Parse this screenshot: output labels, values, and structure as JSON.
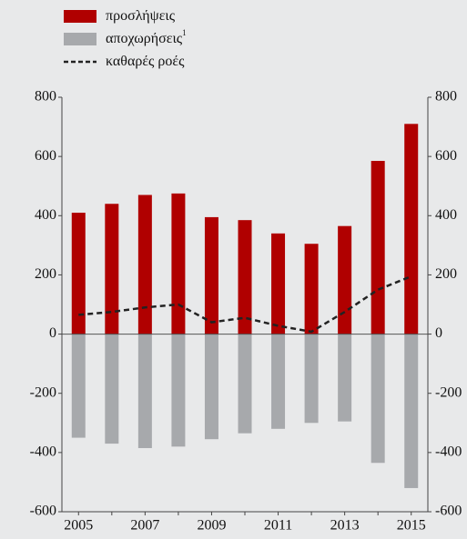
{
  "chart_data": {
    "type": "bar_line",
    "categories": [
      "2005",
      null,
      "2007",
      null,
      "2009",
      null,
      "2011",
      null,
      "2013",
      null,
      "2015"
    ],
    "series": [
      {
        "name": "προσλήψεις",
        "type": "bar",
        "color": "#b00000",
        "values": [
          410,
          440,
          470,
          475,
          395,
          385,
          340,
          305,
          365,
          585,
          710
        ]
      },
      {
        "name": "αποχωρήσεις",
        "footnote_mark": "1",
        "type": "bar",
        "color": "#a7a9ac",
        "values": [
          -350,
          -370,
          -385,
          -380,
          -355,
          -335,
          -320,
          -300,
          -295,
          -435,
          -520
        ]
      },
      {
        "name": "καθαρές ροές",
        "type": "line",
        "dashed": true,
        "color": "#222222",
        "values": [
          65,
          75,
          90,
          100,
          40,
          55,
          28,
          8,
          75,
          150,
          195
        ]
      }
    ],
    "ylim": [
      -600,
      800
    ],
    "yticks": [
      -600,
      -400,
      -200,
      0,
      200,
      400,
      600,
      800
    ],
    "y2lim": [
      -600,
      800
    ],
    "y2ticks": [
      -600,
      -400,
      -200,
      0,
      200,
      400,
      600,
      800
    ],
    "grid": false
  }
}
